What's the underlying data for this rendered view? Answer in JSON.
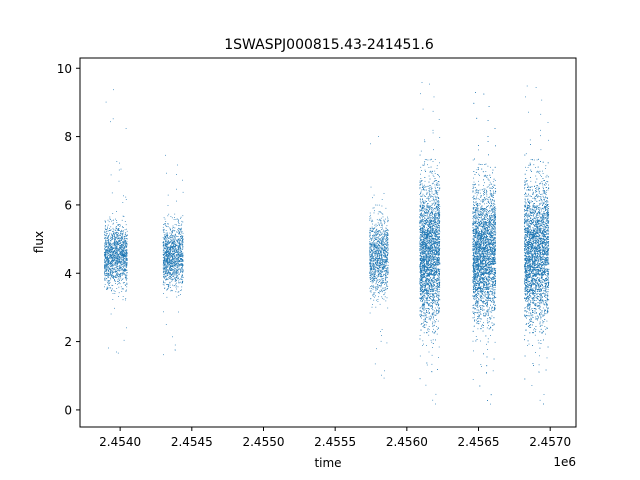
{
  "chart_data": {
    "type": "scatter",
    "title": "1SWASPJ000815.43-241451.6",
    "xlabel": "time",
    "ylabel": "flux",
    "x_offset_label": "1e6",
    "xlim": [
      2453720,
      2457180
    ],
    "ylim": [
      -0.5,
      10.3
    ],
    "x_ticks": [
      2.454,
      2.4545,
      2.455,
      2.4555,
      2.456,
      2.4565,
      2.457
    ],
    "x_tick_labels": [
      "2.4540",
      "2.4545",
      "2.4550",
      "2.4555",
      "2.4560",
      "2.4565",
      "2.4570"
    ],
    "y_ticks": [
      0,
      2,
      4,
      6,
      8,
      10
    ],
    "y_tick_labels": [
      "0",
      "2",
      "4",
      "6",
      "8",
      "10"
    ],
    "grid": false,
    "marker_color": "#1f77b4",
    "observing_seasons": [
      {
        "x_start": 2453890,
        "x_end": 2454050,
        "median_flux": 4.5,
        "flux_spread": 0.45,
        "flux_min": 1.3,
        "flux_max": 9.6
      },
      {
        "x_start": 2454300,
        "x_end": 2454440,
        "median_flux": 4.5,
        "flux_spread": 0.45,
        "flux_min": 1.0,
        "flux_max": 7.6
      },
      {
        "x_start": 2455740,
        "x_end": 2455870,
        "median_flux": 4.5,
        "flux_spread": 0.55,
        "flux_min": 0.8,
        "flux_max": 8.2
      },
      {
        "x_start": 2456090,
        "x_end": 2456230,
        "median_flux": 4.6,
        "flux_spread": 1.0,
        "flux_min": 0.0,
        "flux_max": 9.8
      },
      {
        "x_start": 2456460,
        "x_end": 2456620,
        "median_flux": 4.6,
        "flux_spread": 0.95,
        "flux_min": 0.0,
        "flux_max": 9.5
      },
      {
        "x_start": 2456820,
        "x_end": 2456990,
        "median_flux": 4.6,
        "flux_spread": 1.0,
        "flux_min": 0.0,
        "flux_max": 9.7
      }
    ]
  }
}
